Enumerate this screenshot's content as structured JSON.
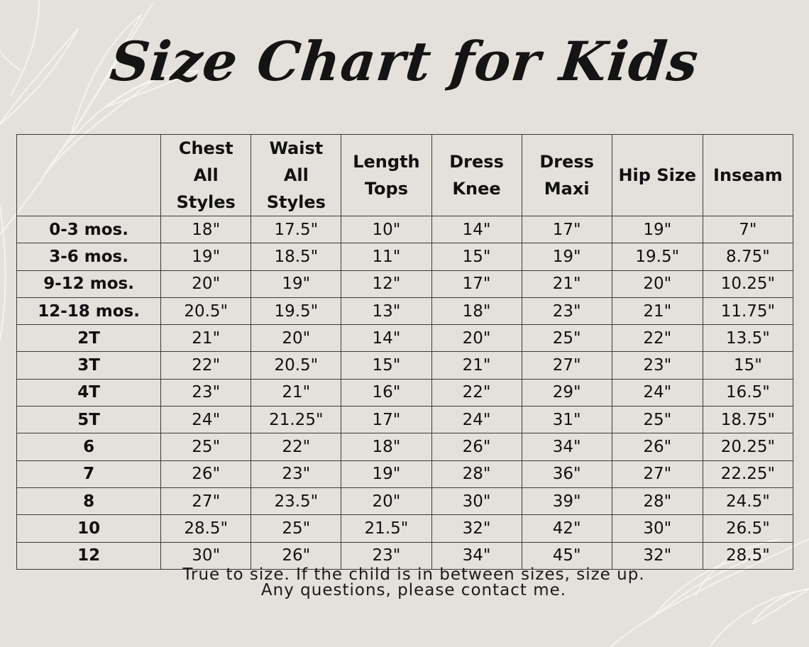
{
  "title": "Size Chart for Kids",
  "table": {
    "headers": [
      {
        "line1": "",
        "line2": ""
      },
      {
        "line1": "Chest",
        "line2": "All Styles"
      },
      {
        "line1": "Waist",
        "line2": "All Styles"
      },
      {
        "line1": "Length",
        "line2": "Tops"
      },
      {
        "line1": "Dress",
        "line2": "Knee"
      },
      {
        "line1": "Dress",
        "line2": "Maxi"
      },
      {
        "line1": "Hip Size",
        "line2": ""
      },
      {
        "line1": "Inseam",
        "line2": ""
      }
    ],
    "rows": [
      [
        "0-3 mos.",
        "18\"",
        "17.5\"",
        "10\"",
        "14\"",
        "17\"",
        "19\"",
        "7\""
      ],
      [
        "3-6 mos.",
        "19\"",
        "18.5\"",
        "11\"",
        "15\"",
        "19\"",
        "19.5\"",
        "8.75\""
      ],
      [
        "9-12 mos.",
        "20\"",
        "19\"",
        "12\"",
        "17\"",
        "21\"",
        "20\"",
        "10.25\""
      ],
      [
        "12-18 mos.",
        "20.5\"",
        "19.5\"",
        "13\"",
        "18\"",
        "23\"",
        "21\"",
        "11.75\""
      ],
      [
        "2T",
        "21\"",
        "20\"",
        "14\"",
        "20\"",
        "25\"",
        "22\"",
        "13.5\""
      ],
      [
        "3T",
        "22\"",
        "20.5\"",
        "15\"",
        "21\"",
        "27\"",
        "23\"",
        "15\""
      ],
      [
        "4T",
        "23\"",
        "21\"",
        "16\"",
        "22\"",
        "29\"",
        "24\"",
        "16.5\""
      ],
      [
        "5T",
        "24\"",
        "21.25\"",
        "17\"",
        "24\"",
        "31\"",
        "25\"",
        "18.75\""
      ],
      [
        "6",
        "25\"",
        "22\"",
        "18\"",
        "26\"",
        "34\"",
        "26\"",
        "20.25\""
      ],
      [
        "7",
        "26\"",
        "23\"",
        "19\"",
        "28\"",
        "36\"",
        "27\"",
        "22.25\""
      ],
      [
        "8",
        "27\"",
        "23.5\"",
        "20\"",
        "30\"",
        "39\"",
        "28\"",
        "24.5\""
      ],
      [
        "10",
        "28.5\"",
        "25\"",
        "21.5\"",
        "32\"",
        "42\"",
        "30\"",
        "26.5\""
      ],
      [
        "12",
        "30\"",
        "26\"",
        "23\"",
        "34\"",
        "45\"",
        "32\"",
        "28.5\""
      ]
    ]
  },
  "notes": {
    "line1": "True to size. If the child is in between sizes, size up.",
    "line2": "Any questions, please contact me."
  },
  "colors": {
    "background": "#e4e1dc",
    "leaf_outline": "#f6f4f1",
    "text": "#111111",
    "grid": "#3a3a3a"
  }
}
